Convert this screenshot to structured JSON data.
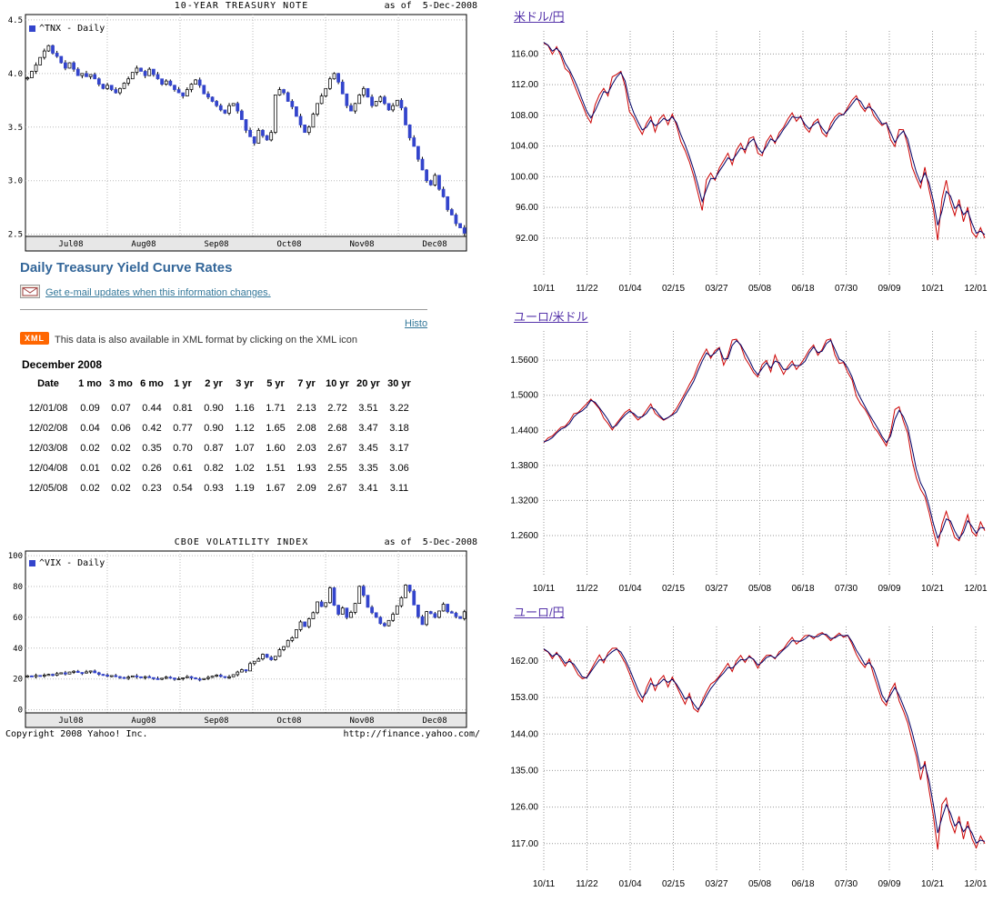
{
  "colors": {
    "heading": "#336699",
    "link": "#337799",
    "fx_title": "#5533aa",
    "candle_blue": "#3344cc",
    "xml_badge_bg": "#ff6600"
  },
  "treasury_section": {
    "heading": "Daily Treasury Yield Curve Rates",
    "email_link": "Get e-mail updates when this information changes.",
    "histo_link": "Histo",
    "xml_badge": "XML",
    "xml_note": "This data is also available in XML format by clicking on the XML icon",
    "period_label": "December 2008",
    "table": {
      "headers": [
        "Date",
        "1 mo",
        "3 mo",
        "6 mo",
        "1 yr",
        "2 yr",
        "3 yr",
        "5 yr",
        "7 yr",
        "10 yr",
        "20 yr",
        "30 yr"
      ],
      "rows": [
        [
          "12/01/08",
          "0.09",
          "0.07",
          "0.44",
          "0.81",
          "0.90",
          "1.16",
          "1.71",
          "2.13",
          "2.72",
          "3.51",
          "3.22"
        ],
        [
          "12/02/08",
          "0.04",
          "0.06",
          "0.42",
          "0.77",
          "0.90",
          "1.12",
          "1.65",
          "2.08",
          "2.68",
          "3.47",
          "3.18"
        ],
        [
          "12/03/08",
          "0.02",
          "0.02",
          "0.35",
          "0.70",
          "0.87",
          "1.07",
          "1.60",
          "2.03",
          "2.67",
          "3.45",
          "3.17"
        ],
        [
          "12/04/08",
          "0.01",
          "0.02",
          "0.26",
          "0.61",
          "0.82",
          "1.02",
          "1.51",
          "1.93",
          "2.55",
          "3.35",
          "3.06"
        ],
        [
          "12/05/08",
          "0.02",
          "0.02",
          "0.23",
          "0.54",
          "0.93",
          "1.19",
          "1.67",
          "2.09",
          "2.67",
          "3.41",
          "3.11"
        ]
      ]
    }
  },
  "yahoo_footer": {
    "copyright": "Copyright 2008 Yahoo! Inc.",
    "url": "http://finance.yahoo.com/"
  },
  "chart_data": [
    {
      "id": "tnx",
      "type": "candlestick",
      "title": "10-YEAR TREASURY NOTE",
      "as_of": "as of  5-Dec-2008",
      "legend": "^TNX - Daily",
      "x_labels": [
        "Jul08",
        "Aug08",
        "Sep08",
        "Oct08",
        "Nov08",
        "Dec08"
      ],
      "y_tick_labels": [
        "4.5",
        "4.0",
        "3.5",
        "3.0",
        "2.5"
      ],
      "y_tick_values": [
        4.5,
        4.0,
        3.5,
        3.0,
        2.5
      ],
      "ylim": [
        2.48,
        4.55
      ],
      "values": [
        3.96,
        4.02,
        4.08,
        4.15,
        4.21,
        4.26,
        4.19,
        4.16,
        4.1,
        4.05,
        4.1,
        4.04,
        3.98,
        4.0,
        3.97,
        3.99,
        3.95,
        3.9,
        3.86,
        3.89,
        3.85,
        3.82,
        3.86,
        3.91,
        3.95,
        4.01,
        4.05,
        4.02,
        3.98,
        4.04,
        3.99,
        3.95,
        3.9,
        3.93,
        3.89,
        3.85,
        3.82,
        3.79,
        3.85,
        3.9,
        3.94,
        3.89,
        3.81,
        3.78,
        3.74,
        3.7,
        3.66,
        3.63,
        3.7,
        3.72,
        3.65,
        3.57,
        3.47,
        3.41,
        3.35,
        3.47,
        3.42,
        3.38,
        3.45,
        3.8,
        3.85,
        3.82,
        3.74,
        3.69,
        3.6,
        3.52,
        3.45,
        3.5,
        3.62,
        3.72,
        3.79,
        3.86,
        3.95,
        4.0,
        3.92,
        3.81,
        3.7,
        3.65,
        3.72,
        3.8,
        3.86,
        3.78,
        3.7,
        3.74,
        3.78,
        3.72,
        3.66,
        3.7,
        3.75,
        3.68,
        3.52,
        3.4,
        3.32,
        3.2,
        3.1,
        3.0,
        2.96,
        3.05,
        2.92,
        2.85,
        2.73,
        2.68,
        2.6,
        2.56,
        2.51
      ]
    },
    {
      "id": "vix",
      "type": "candlestick",
      "title": "CBOE VOLATILITY INDEX",
      "as_of": "as of  5-Dec-2008",
      "legend": "^VIX - Daily",
      "x_labels": [
        "Jul08",
        "Aug08",
        "Sep08",
        "Oct08",
        "Nov08",
        "Dec08"
      ],
      "y_tick_labels": [
        "100",
        "80",
        "60",
        "40",
        "20",
        "0"
      ],
      "y_tick_values": [
        100,
        80,
        60,
        40,
        20,
        0
      ],
      "ylim": [
        -2,
        103
      ],
      "values": [
        22.0,
        21.5,
        22.3,
        21.8,
        22.5,
        23.0,
        22.4,
        23.5,
        24.0,
        23.2,
        24.5,
        25.0,
        24.2,
        23.8,
        24.6,
        25.2,
        24.0,
        23.0,
        22.5,
        21.8,
        22.2,
        21.5,
        21.0,
        20.5,
        21.2,
        22.0,
        21.4,
        20.8,
        21.5,
        20.9,
        20.3,
        19.9,
        20.5,
        21.2,
        20.6,
        19.8,
        20.2,
        20.8,
        21.5,
        20.7,
        20.0,
        19.6,
        20.3,
        21.0,
        21.8,
        22.5,
        21.6,
        20.9,
        21.4,
        22.8,
        24.5,
        26.0,
        25.2,
        30.0,
        31.5,
        33.0,
        36.0,
        34.0,
        32.5,
        34.7,
        39.0,
        41.0,
        45.0,
        46.7,
        52.0,
        57.0,
        54.0,
        59.0,
        63.0,
        70.0,
        67.0,
        69.5,
        79.1,
        67.8,
        62.0,
        66.0,
        59.9,
        63.2,
        69.0,
        80.1,
        74.3,
        66.5,
        63.0,
        60.0,
        56.0,
        54.5,
        58.0,
        62.0,
        67.5,
        72.7,
        80.9,
        77.0,
        68.0,
        60.4,
        55.3,
        63.7,
        62.4,
        60.0,
        64.1,
        68.5,
        63.6,
        62.7,
        60.5,
        59.2,
        63.6
      ]
    },
    {
      "id": "usd_jpy",
      "type": "line",
      "title": "米ドル/円",
      "x_labels": [
        "10/11",
        "11/22",
        "01/04",
        "02/15",
        "03/27",
        "05/08",
        "06/18",
        "07/30",
        "09/09",
        "10/21",
        "12/01"
      ],
      "y_tick_labels": [
        "116.00",
        "112.00",
        "108.00",
        "104.00",
        "100.00",
        "96.00",
        "92.00"
      ],
      "y_tick_values": [
        116,
        112,
        108,
        104,
        100,
        96,
        92
      ],
      "ylim": [
        87,
        119
      ],
      "colors": [
        "#cc0000",
        "#000066"
      ],
      "values": [
        117.4,
        117.1,
        116.3,
        116.8,
        115.9,
        114.6,
        113.8,
        112.4,
        111.2,
        109.8,
        108.3,
        107.4,
        108.9,
        110.2,
        111.3,
        110.7,
        112.4,
        113.2,
        113.6,
        112.1,
        109.4,
        108.1,
        106.8,
        105.9,
        106.7,
        107.5,
        106.3,
        107.2,
        107.8,
        107.1,
        107.9,
        106.9,
        105.2,
        103.8,
        102.3,
        100.7,
        98.5,
        96.2,
        98.9,
        100.1,
        99.6,
        100.9,
        101.8,
        102.7,
        101.9,
        103.1,
        104.0,
        103.4,
        104.6,
        105.0,
        103.6,
        102.9,
        104.1,
        105.2,
        104.5,
        105.4,
        106.3,
        107.2,
        108.0,
        107.5,
        107.8,
        106.7,
        106.1,
        106.8,
        107.3,
        106.2,
        105.4,
        106.5,
        107.6,
        108.1,
        108.0,
        108.9,
        109.7,
        110.3,
        109.6,
        108.7,
        109.3,
        108.4,
        107.5,
        106.8,
        107.1,
        105.3,
        104.2,
        105.8,
        106.0,
        104.5,
        102.1,
        100.3,
        98.9,
        100.8,
        98.8,
        96.4,
        92.9,
        96.1,
        98.7,
        97.2,
        95.4,
        96.6,
        94.8,
        95.7,
        93.4,
        92.5,
        93.1,
        92.2
      ]
    },
    {
      "id": "eur_usd",
      "type": "line",
      "title": "ユーロ/米ドル",
      "x_labels": [
        "10/11",
        "11/22",
        "01/04",
        "02/15",
        "03/27",
        "05/08",
        "06/18",
        "07/30",
        "09/09",
        "10/21",
        "12/01"
      ],
      "y_tick_labels": [
        "1.5600",
        "1.5000",
        "1.4400",
        "1.3800",
        "1.3200",
        "1.2600"
      ],
      "y_tick_values": [
        1.56,
        1.5,
        1.44,
        1.38,
        1.32,
        1.26
      ],
      "ylim": [
        1.19,
        1.61
      ],
      "colors": [
        "#cc0000",
        "#000066"
      ],
      "values": [
        1.419,
        1.424,
        1.43,
        1.436,
        1.442,
        1.447,
        1.454,
        1.464,
        1.47,
        1.476,
        1.482,
        1.492,
        1.487,
        1.478,
        1.466,
        1.455,
        1.443,
        1.451,
        1.459,
        1.467,
        1.475,
        1.468,
        1.459,
        1.464,
        1.472,
        1.481,
        1.473,
        1.465,
        1.458,
        1.462,
        1.466,
        1.474,
        1.488,
        1.5,
        1.513,
        1.528,
        1.545,
        1.56,
        1.576,
        1.566,
        1.573,
        1.581,
        1.558,
        1.565,
        1.589,
        1.594,
        1.586,
        1.57,
        1.556,
        1.542,
        1.535,
        1.548,
        1.556,
        1.545,
        1.563,
        1.553,
        1.541,
        1.547,
        1.555,
        1.548,
        1.552,
        1.561,
        1.575,
        1.583,
        1.571,
        1.578,
        1.59,
        1.594,
        1.576,
        1.559,
        1.556,
        1.544,
        1.53,
        1.505,
        1.491,
        1.479,
        1.466,
        1.452,
        1.44,
        1.428,
        1.418,
        1.432,
        1.465,
        1.478,
        1.46,
        1.44,
        1.402,
        1.368,
        1.345,
        1.332,
        1.306,
        1.275,
        1.25,
        1.272,
        1.294,
        1.283,
        1.262,
        1.253,
        1.27,
        1.289,
        1.271,
        1.263,
        1.278,
        1.27
      ]
    },
    {
      "id": "eur_jpy",
      "type": "line",
      "title": "ユーロ/円",
      "x_labels": [
        "10/11",
        "11/22",
        "01/04",
        "02/15",
        "03/27",
        "05/08",
        "06/18",
        "07/30",
        "09/09",
        "10/21",
        "12/01"
      ],
      "y_tick_labels": [
        "162.00",
        "153.00",
        "144.00",
        "135.00",
        "126.00",
        "117.00"
      ],
      "y_tick_values": [
        162,
        153,
        144,
        135,
        126,
        117
      ],
      "ylim": [
        110,
        170.5
      ],
      "colors": [
        "#cc0000",
        "#000066"
      ],
      "values": [
        164.8,
        164.2,
        163.1,
        163.9,
        162.6,
        161.3,
        162.2,
        160.8,
        159.3,
        158.0,
        157.8,
        159.5,
        161.2,
        162.8,
        162.0,
        163.5,
        164.6,
        165.2,
        163.8,
        161.9,
        159.8,
        157.0,
        154.2,
        152.6,
        154.8,
        156.9,
        155.4,
        156.8,
        157.9,
        156.3,
        157.6,
        156.1,
        154.3,
        152.0,
        153.4,
        151.2,
        149.8,
        151.5,
        153.9,
        155.7,
        156.6,
        158.1,
        159.4,
        160.8,
        159.9,
        161.5,
        162.8,
        162.1,
        163.0,
        162.3,
        160.9,
        161.8,
        162.9,
        163.5,
        162.7,
        163.8,
        164.9,
        166.1,
        167.3,
        166.6,
        166.9,
        167.8,
        168.4,
        167.6,
        168.2,
        169.0,
        168.3,
        167.2,
        168.0,
        168.6,
        167.9,
        168.4,
        166.6,
        164.2,
        162.5,
        160.8,
        162.0,
        159.6,
        156.3,
        153.1,
        151.7,
        153.9,
        155.8,
        153.2,
        150.4,
        147.5,
        143.8,
        139.6,
        134.2,
        136.8,
        131.5,
        125.4,
        118.0,
        124.6,
        127.3,
        123.8,
        120.5,
        122.9,
        119.4,
        121.7,
        118.9,
        116.8,
        118.3,
        117.2
      ]
    }
  ]
}
